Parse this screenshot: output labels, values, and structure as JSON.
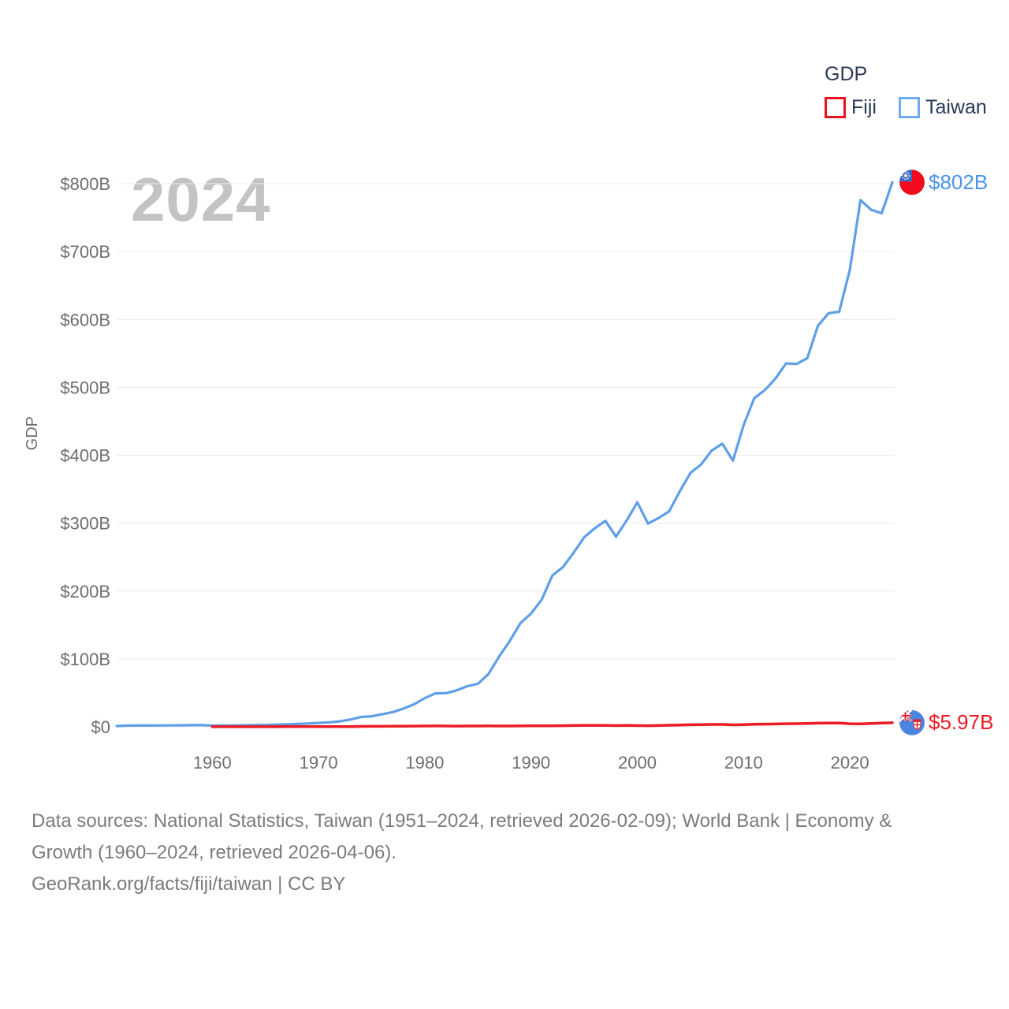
{
  "page": {
    "background": "#ffffff"
  },
  "legend": {
    "title": "GDP",
    "items": [
      {
        "label": "Fiji",
        "color": "#e8131d"
      },
      {
        "label": "Taiwan",
        "color": "#6fabf0"
      }
    ]
  },
  "watermark": "2024",
  "axis": {
    "y_label": "GDP",
    "y_ticks": [
      {
        "label": "$0",
        "value": 0
      },
      {
        "label": "$100B",
        "value": 100
      },
      {
        "label": "$200B",
        "value": 200
      },
      {
        "label": "$300B",
        "value": 300
      },
      {
        "label": "$400B",
        "value": 400
      },
      {
        "label": "$500B",
        "value": 500
      },
      {
        "label": "$600B",
        "value": 600
      },
      {
        "label": "$700B",
        "value": 700
      },
      {
        "label": "$800B",
        "value": 800
      }
    ],
    "x_ticks": [
      {
        "label": "1960",
        "value": 1960
      },
      {
        "label": "1970",
        "value": 1970
      },
      {
        "label": "1980",
        "value": 1980
      },
      {
        "label": "1990",
        "value": 1990
      },
      {
        "label": "2000",
        "value": 2000
      },
      {
        "label": "2010",
        "value": 2010
      },
      {
        "label": "2020",
        "value": 2020
      }
    ]
  },
  "end_labels": {
    "taiwan": "$802B",
    "fiji": "$5.97B"
  },
  "footer": {
    "lines": [
      "Data sources: National Statistics, Taiwan (1951–2024, retrieved 2026-02-09); World Bank | Economy &",
      "Growth (1960–2024, retrieved 2026-04-06).",
      "GeoRank.org/facts/fiji/taiwan | CC BY"
    ]
  },
  "chart_data": {
    "type": "line",
    "title": "",
    "xlabel": "",
    "ylabel": "GDP",
    "x_range": [
      1951,
      2024
    ],
    "ylim": [
      0,
      800
    ],
    "grid": true,
    "legend_position": "top-right",
    "y_tick_values": [
      0,
      100,
      200,
      300,
      400,
      500,
      600,
      700,
      800
    ],
    "x_tick_values": [
      1960,
      1970,
      1980,
      1990,
      2000,
      2010,
      2020
    ],
    "series": [
      {
        "name": "Taiwan",
        "flag": "taiwan",
        "color": "#5f9fe8",
        "width": 3.2,
        "end_label": "$802B",
        "x": [
          1951,
          1952,
          1953,
          1954,
          1955,
          1956,
          1957,
          1958,
          1959,
          1960,
          1961,
          1962,
          1963,
          1964,
          1965,
          1966,
          1967,
          1968,
          1969,
          1970,
          1971,
          1972,
          1973,
          1974,
          1975,
          1976,
          1977,
          1978,
          1979,
          1980,
          1981,
          1982,
          1983,
          1984,
          1985,
          1986,
          1987,
          1988,
          1989,
          1990,
          1991,
          1992,
          1993,
          1994,
          1995,
          1996,
          1997,
          1998,
          1999,
          2000,
          2001,
          2002,
          2003,
          2004,
          2005,
          2006,
          2007,
          2008,
          2009,
          2010,
          2011,
          2012,
          2013,
          2014,
          2015,
          2016,
          2017,
          2018,
          2019,
          2020,
          2021,
          2022,
          2023,
          2024
        ],
        "values": [
          1.2,
          1.7,
          1.8,
          1.8,
          2.0,
          2.1,
          2.2,
          2.4,
          2.5,
          1.7,
          1.8,
          1.9,
          2.2,
          2.6,
          2.8,
          3.2,
          3.6,
          4.2,
          4.9,
          5.7,
          6.6,
          8.0,
          10.7,
          14.5,
          15.5,
          18.5,
          21.7,
          26.8,
          33.2,
          42.3,
          49.2,
          49.6,
          53.7,
          59.8,
          63.4,
          77.9,
          103.7,
          126.5,
          152.7,
          166.8,
          187.3,
          222.9,
          235.1,
          256.3,
          279.1,
          292.6,
          303.3,
          280.1,
          303.9,
          330.7,
          299.3,
          307.5,
          317.4,
          346.9,
          374.0,
          386.4,
          406.9,
          416.9,
          392.1,
          444.2,
          483.9,
          495.9,
          512.9,
          535.3,
          534.5,
          543.0,
          590.7,
          609.2,
          611.3,
          673.2,
          775.9,
          761.6,
          756.5,
          802.0
        ]
      },
      {
        "name": "Fiji",
        "flag": "fiji",
        "color": "#ed1c24",
        "width": 3.5,
        "end_label": "$5.97B",
        "x": [
          1960,
          1961,
          1962,
          1963,
          1964,
          1965,
          1966,
          1967,
          1968,
          1969,
          1970,
          1971,
          1972,
          1973,
          1974,
          1975,
          1976,
          1977,
          1978,
          1979,
          1980,
          1981,
          1982,
          1983,
          1984,
          1985,
          1986,
          1987,
          1988,
          1989,
          1990,
          1991,
          1992,
          1993,
          1994,
          1995,
          1996,
          1997,
          1998,
          1999,
          2000,
          2001,
          2002,
          2003,
          2004,
          2005,
          2006,
          2007,
          2008,
          2009,
          2010,
          2011,
          2012,
          2013,
          2014,
          2015,
          2016,
          2017,
          2018,
          2019,
          2020,
          2021,
          2022,
          2023,
          2024
        ],
        "values": [
          0.112,
          0.117,
          0.125,
          0.132,
          0.148,
          0.156,
          0.17,
          0.176,
          0.19,
          0.208,
          0.22,
          0.253,
          0.311,
          0.394,
          0.535,
          0.681,
          0.713,
          0.762,
          0.888,
          1.074,
          1.202,
          1.237,
          1.16,
          1.091,
          1.152,
          1.14,
          1.288,
          1.185,
          1.107,
          1.268,
          1.337,
          1.383,
          1.533,
          1.636,
          1.826,
          1.96,
          2.126,
          2.124,
          1.756,
          2.044,
          1.684,
          1.645,
          1.829,
          2.315,
          2.724,
          3.006,
          3.155,
          3.445,
          3.524,
          2.87,
          3.14,
          3.774,
          3.971,
          4.189,
          4.556,
          4.682,
          4.929,
          5.352,
          5.58,
          5.496,
          4.479,
          4.296,
          4.979,
          5.551,
          5.97
        ]
      }
    ]
  }
}
